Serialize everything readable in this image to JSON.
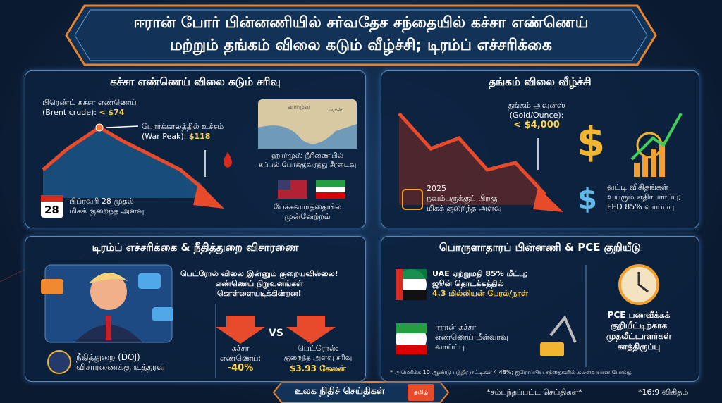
{
  "header": {
    "title_lines": [
      "ஈரான் போர் பின்னணியில் சர்வதேச சந்தையில் கச்சா எண்ணெய்",
      "மற்றும் தங்கம் விலை கடும் வீழ்ச்சி; டிரம்ப் எச்சரிக்கை"
    ]
  },
  "oil_panel": {
    "title": "கச்சா எண்ணெய் விலை கடும் சரிவு",
    "brent_lines": [
      "பிரெண்ட் கச்சா எண்ணெய்",
      "(Brent crude):"
    ],
    "brent_value": "< $74",
    "peak_lines": [
      "போர்க்காலத்தில் உச்சம்",
      "(War Peak):"
    ],
    "peak_value": "$118",
    "calendar_day": "28",
    "low_lines": [
      "பிப்ரவரி 28 முதல்",
      "மிகக் குறைந்த அளவு"
    ],
    "map_labels": [
      "ஹார்முஸ்",
      "ஈரான்"
    ],
    "strait_lines": [
      "ஹார்முஸ் நீரிணையில்",
      "கப்பல் போக்குவரத்து சீரடைவு"
    ],
    "talks_lines": [
      "பேச்சுவார்த்தையில்",
      "முன்னேற்றம்"
    ]
  },
  "gold_panel": {
    "title": "தங்கம் விலை வீழ்ச்சி",
    "gold_lines": [
      "தங்கம் அவுன்ஸ்",
      "(Gold/Ounce):"
    ],
    "gold_value": "< $4,000",
    "low_lines": [
      "2025",
      "நவம்பருக்குப் பிறகு",
      "மிகக் குறைந்த அளவு"
    ],
    "rate_lines": [
      "வட்டி விகிதங்கள்",
      "உயரும் எதிர்பார்ப்பு;",
      "FED 85% வாய்ப்பு"
    ]
  },
  "trump_panel": {
    "title": "டிரம்ப் எச்சரிக்கை & நீதித்துறை விசாரணை",
    "quote_lines": [
      "பெட்ரோல் விலை இன்னும் குறையவில்லை!",
      "எண்ணெய் நிறுவனங்கள்",
      "கொள்ளையடிக்கின்றன!"
    ],
    "crude_lines": [
      "கச்சா",
      "எண்ணெய்:"
    ],
    "crude_value": "-40%",
    "vs": "VS",
    "petrol_lines": [
      "பெட்ரோல்:",
      "குறைந்த அளவு சரிவு"
    ],
    "petrol_value": "$3.93 கேலன்",
    "doj_lines": [
      "நீதித்துறை (DOJ)",
      "விசாரணைக்கு உத்தரவு"
    ]
  },
  "economy_panel": {
    "title": "பொருளாதாரப் பின்னணி & PCE குறியீடு",
    "uae_lines": [
      "UAE ஏற்றுமதி 85% மீட்பு;",
      "ஜூன் தொடக்கத்தில்",
      "4.3 மில்லியன் பேரல்/நாள்"
    ],
    "iran_lines": [
      "ஈரான் கச்சா",
      "எண்ணெய் மீள்வரவு",
      "வாய்ப்பு"
    ],
    "pce_lines": [
      "PCE பணவீக்கக்",
      "குறியீட்டிற்காக",
      "முதலீட்டாளர்கள்",
      "காத்திருப்பு"
    ],
    "footnote": "* அமெரிக்க 10 ஆண்டு பத்திர ஈட்டிகள் 4.48%; ஐரோப்பிய சந்தைகளில் கலவையான போக்கு"
  },
  "footer": {
    "brand": "உலக நிதிச் செய்திகள்",
    "logo": "தமிழ்",
    "related": "*சம்பந்தப்பட்ட செய்திகள்*",
    "ratio": "*16:9 விகிதம்"
  }
}
